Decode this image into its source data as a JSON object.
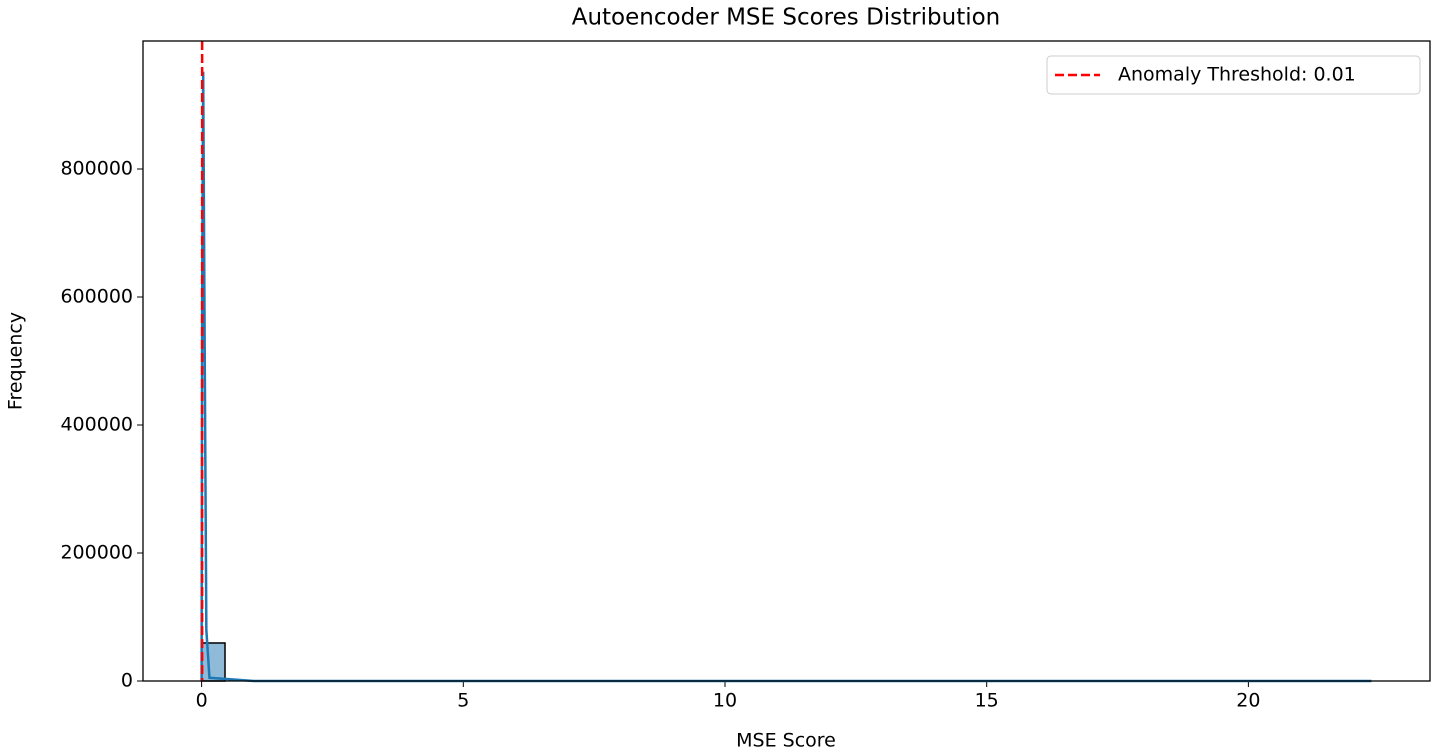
{
  "chart_data": {
    "type": "histogram",
    "title": "Autoencoder MSE Scores Distribution",
    "x_label": "MSE Score",
    "y_label": "Frequency",
    "bins": [
      0,
      0.447,
      0.894,
      1.341,
      1.788,
      2.235,
      2.682,
      3.129,
      3.576,
      4.023,
      4.47,
      4.917,
      5.364,
      5.811,
      6.258,
      6.705,
      7.152,
      7.599,
      8.046,
      8.493,
      8.94,
      9.387,
      9.834,
      10.281,
      10.728,
      11.175,
      11.622,
      12.069,
      12.516,
      12.963,
      13.41,
      13.857,
      14.304,
      14.751,
      15.198,
      15.645,
      16.092,
      16.539,
      16.986,
      17.433,
      17.88,
      18.327,
      18.774,
      19.221,
      19.668,
      20.115,
      20.562,
      21.009,
      21.456,
      21.903,
      22.35
    ],
    "values": [
      59400,
      0,
      0,
      0,
      0,
      0,
      0,
      0,
      0,
      0,
      0,
      0,
      0,
      0,
      0,
      0,
      0,
      0,
      0,
      0,
      0,
      0,
      0,
      0,
      0,
      0,
      0,
      0,
      0,
      0,
      0,
      0,
      0,
      0,
      0,
      0,
      0,
      0,
      0,
      0,
      0,
      0,
      0,
      0,
      0,
      0,
      0,
      0,
      0,
      0
    ],
    "color": "#8fbbd9",
    "edge_color": "#000000",
    "kde": {
      "x": [
        0,
        0.01,
        0.03,
        0.06,
        0.09,
        0.15,
        1,
        22.35
      ],
      "values": [
        0,
        600000,
        952000,
        500000,
        80000,
        5000,
        0,
        0
      ],
      "color": "#1f77b4"
    },
    "threshold": {
      "value": 0.01,
      "label": "Anomaly Threshold: 0.01",
      "color": "#ff0000"
    },
    "xlim": [
      -1.12,
      23.47
    ],
    "ylim": [
      0,
      1000000
    ],
    "xticks": [
      0,
      5,
      10,
      15,
      20
    ],
    "yticks": [
      0,
      200000,
      400000,
      600000,
      800000
    ],
    "legend": "upper right"
  }
}
